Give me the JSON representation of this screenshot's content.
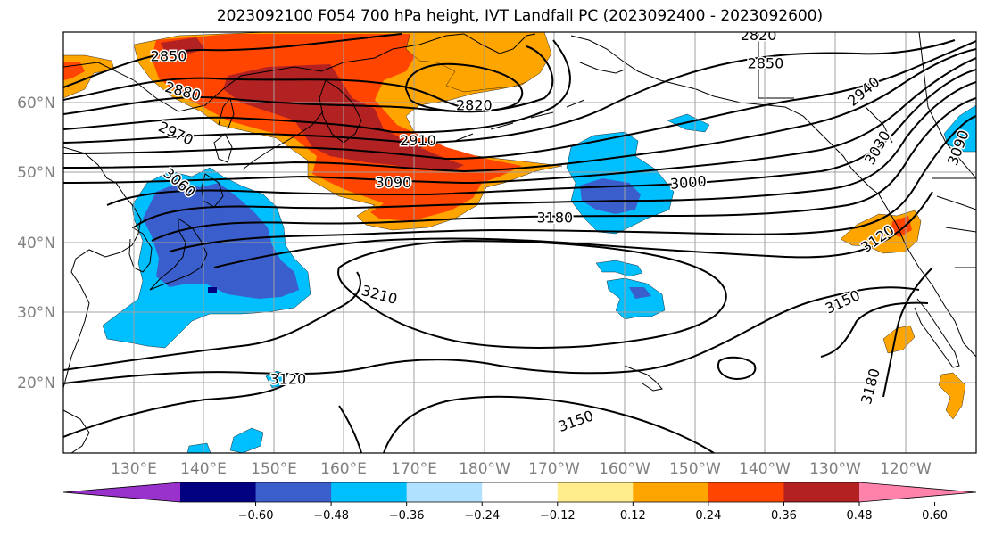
{
  "title": "2023092100 F054 700 hPa height, IVT Landfall PC (2023092400 - 2023092600)",
  "map": {
    "lon_range": [
      120,
      -110
    ],
    "lat_range": [
      10,
      70
    ],
    "x_ticks": [
      "130°E",
      "140°E",
      "150°E",
      "160°E",
      "170°E",
      "180°W",
      "170°W",
      "160°W",
      "150°W",
      "140°W",
      "130°W",
      "120°W"
    ],
    "y_ticks": [
      "20°N",
      "30°N",
      "40°N",
      "50°N",
      "60°N"
    ],
    "grid": true,
    "contour_labels": [
      {
        "text": "2850",
        "lon": 135,
        "lat": 66.5,
        "rot": 0
      },
      {
        "text": "2880",
        "lon": 137,
        "lat": 61.5,
        "rot": 15
      },
      {
        "text": "2970",
        "lon": 136,
        "lat": 55.5,
        "rot": 25
      },
      {
        "text": "3060",
        "lon": 136.5,
        "lat": 48.5,
        "rot": 40
      },
      {
        "text": "2910",
        "lon": 170.5,
        "lat": 54.5,
        "rot": 0
      },
      {
        "text": "2820",
        "lon": 178.5,
        "lat": 59.5,
        "rot": 0
      },
      {
        "text": "2820",
        "lon": -141,
        "lat": 69.5,
        "rot": 0
      },
      {
        "text": "2850",
        "lon": -140,
        "lat": 65.5,
        "rot": 0
      },
      {
        "text": "3090",
        "lon": 167,
        "lat": 48.5,
        "rot": 0
      },
      {
        "text": "3000",
        "lon": -151,
        "lat": 48.5,
        "rot": -5
      },
      {
        "text": "3180",
        "lon": -170,
        "lat": 43.5,
        "rot": 0
      },
      {
        "text": "3210",
        "lon": 165,
        "lat": 32.5,
        "rot": 15
      },
      {
        "text": "3120",
        "lon": 152,
        "lat": 20.5,
        "rot": 0
      },
      {
        "text": "3150",
        "lon": -167,
        "lat": 14.5,
        "rot": -20
      },
      {
        "text": "3150",
        "lon": -129,
        "lat": 31.5,
        "rot": -25
      },
      {
        "text": "3180",
        "lon": -125,
        "lat": 19.5,
        "rot": -75
      },
      {
        "text": "3120",
        "lon": -124,
        "lat": 40.5,
        "rot": -35
      },
      {
        "text": "2940",
        "lon": -126,
        "lat": 61.5,
        "rot": -40
      },
      {
        "text": "3030",
        "lon": -124,
        "lat": 53.5,
        "rot": -60
      },
      {
        "text": "3090",
        "lon": -112.5,
        "lat": 53.5,
        "rot": -70
      }
    ]
  },
  "colorbar": {
    "ticks": [
      "−0.60",
      "−0.48",
      "−0.36",
      "−0.24",
      "−0.12",
      "0.12",
      "0.24",
      "0.36",
      "0.48",
      "0.60"
    ],
    "colors": [
      "#9932cc",
      "#000080",
      "#3a5fcd",
      "#00bfff",
      "#b0e2ff",
      "#ffffff",
      "#ffec8b",
      "#ffa500",
      "#ff4500",
      "#b22222",
      "#ff82ab"
    ]
  }
}
